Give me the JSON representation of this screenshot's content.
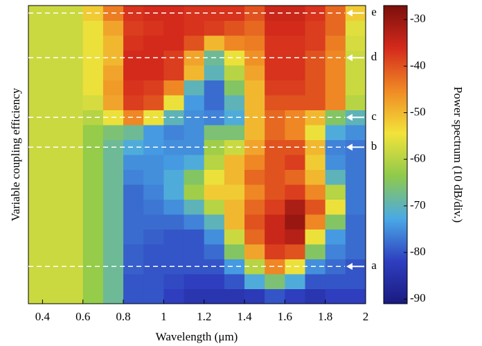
{
  "chart_data": {
    "type": "heatmap",
    "xlabel": "Wavelength (μm)",
    "ylabel": "Variable coupling efficiency",
    "colorbar_label": "Power spectrum (10 dB/div.)",
    "x_bins": [
      0.33,
      0.5,
      0.6,
      0.7,
      0.8,
      0.9,
      1.0,
      1.1,
      1.2,
      1.3,
      1.4,
      1.5,
      1.6,
      1.7,
      1.8,
      1.9,
      2.0
    ],
    "xlim": [
      0.33,
      2.0
    ],
    "xticks": [
      0.4,
      0.6,
      0.8,
      1,
      1.2,
      1.4,
      1.6,
      1.8,
      2
    ],
    "rows": [
      null,
      null,
      "a",
      null,
      null,
      null,
      null,
      null,
      null,
      null,
      "b",
      null,
      "c",
      null,
      null,
      null,
      "d",
      null,
      null,
      "e"
    ],
    "z": [
      [
        -58,
        -58,
        -63,
        -68,
        -80,
        -80,
        -82,
        -84,
        -84,
        -84,
        -83,
        -80,
        -82,
        -84,
        -82,
        -82
      ],
      [
        -58,
        -58,
        -63,
        -68,
        -80,
        -80,
        -81,
        -82,
        -82,
        -80,
        -72,
        -66,
        -72,
        -80,
        -80,
        -80
      ],
      [
        -58,
        -58,
        -63,
        -68,
        -79,
        -80,
        -80,
        -80,
        -80,
        -74,
        -60,
        -45,
        -55,
        -75,
        -78,
        -80
      ],
      [
        -58,
        -58,
        -63,
        -68,
        -79,
        -80,
        -80,
        -80,
        -78,
        -65,
        -48,
        -38,
        -40,
        -65,
        -76,
        -78
      ],
      [
        -58,
        -58,
        -63,
        -68,
        -78,
        -79,
        -80,
        -80,
        -75,
        -58,
        -42,
        -35,
        -33,
        -55,
        -74,
        -78
      ],
      [
        -58,
        -58,
        -63,
        -68,
        -78,
        -78,
        -78,
        -76,
        -70,
        -50,
        -40,
        -35,
        -30,
        -45,
        -65,
        -78
      ],
      [
        -58,
        -58,
        -63,
        -68,
        -78,
        -77,
        -75,
        -70,
        -60,
        -50,
        -42,
        -38,
        -32,
        -40,
        -55,
        -77
      ],
      [
        -58,
        -58,
        -63,
        -68,
        -78,
        -76,
        -72,
        -62,
        -52,
        -52,
        -45,
        -40,
        -38,
        -45,
        -60,
        -77
      ],
      [
        -58,
        -58,
        -63,
        -68,
        -76,
        -75,
        -72,
        -65,
        -55,
        -50,
        -42,
        -40,
        -42,
        -50,
        -70,
        -77
      ],
      [
        -58,
        -58,
        -63,
        -68,
        -75,
        -75,
        -74,
        -72,
        -60,
        -50,
        -45,
        -40,
        -38,
        -52,
        -75,
        -77
      ],
      [
        -58,
        -58,
        -63,
        -68,
        -72,
        -74,
        -75,
        -75,
        -62,
        -58,
        -48,
        -40,
        -40,
        -50,
        -76,
        -77
      ],
      [
        -58,
        -58,
        -63,
        -66,
        -68,
        -74,
        -76,
        -75,
        -66,
        -66,
        -50,
        -42,
        -45,
        -55,
        -72,
        -75
      ],
      [
        -58,
        -58,
        -60,
        -55,
        -45,
        -55,
        -70,
        -75,
        -76,
        -72,
        -50,
        -42,
        -45,
        -50,
        -65,
        -70
      ],
      [
        -58,
        -58,
        -57,
        -48,
        -38,
        -40,
        -55,
        -74,
        -78,
        -70,
        -50,
        -40,
        -40,
        -40,
        -45,
        -60
      ],
      [
        -58,
        -58,
        -55,
        -47,
        -37,
        -38,
        -45,
        -70,
        -78,
        -65,
        -50,
        -38,
        -38,
        -40,
        -45,
        -58
      ],
      [
        -58,
        -58,
        -55,
        -48,
        -36,
        -36,
        -38,
        -50,
        -70,
        -60,
        -48,
        -37,
        -37,
        -40,
        -45,
        -58
      ],
      [
        -58,
        -58,
        -55,
        -50,
        -36,
        -36,
        -38,
        -48,
        -68,
        -55,
        -46,
        -37,
        -37,
        -40,
        -45,
        -58
      ],
      [
        -58,
        -58,
        -55,
        -50,
        -37,
        -36,
        -36,
        -40,
        -50,
        -45,
        -44,
        -37,
        -37,
        -38,
        -44,
        -57
      ],
      [
        -58,
        -58,
        -55,
        -48,
        -38,
        -37,
        -36,
        -37,
        -38,
        -40,
        -42,
        -36,
        -36,
        -38,
        -42,
        -56
      ],
      [
        -58,
        -58,
        -52,
        -44,
        -37,
        -36,
        -36,
        -37,
        -37,
        -37,
        -40,
        -35,
        -35,
        -37,
        -42,
        -52
      ]
    ],
    "zlim": [
      -91,
      -27
    ],
    "zticks": [
      -30,
      -40,
      -50,
      -60,
      -70,
      -80,
      -90
    ],
    "colorscale": [
      "#1a1a80",
      "#2e3fbf",
      "#4aa9e6",
      "#8fca4b",
      "#f2e33a",
      "#f08a24",
      "#d42a1c",
      "#7a0f0c"
    ]
  }
}
